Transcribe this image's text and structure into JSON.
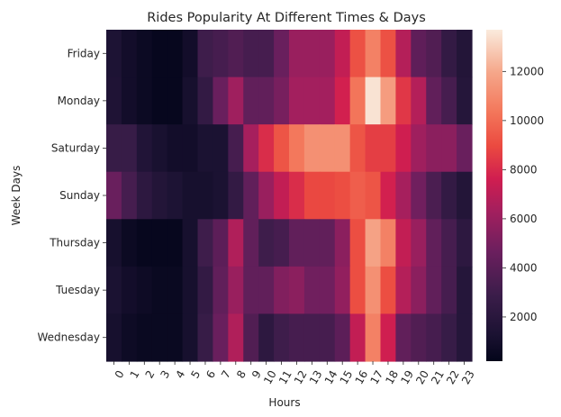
{
  "chart_data": {
    "type": "heatmap",
    "title": "Rides Popularity At Different Times & Days",
    "xlabel": "Hours",
    "ylabel": "Week Days",
    "x": [
      "0",
      "1",
      "2",
      "3",
      "4",
      "5",
      "6",
      "7",
      "8",
      "9",
      "10",
      "11",
      "12",
      "13",
      "14",
      "15",
      "16",
      "17",
      "18",
      "19",
      "20",
      "21",
      "22",
      "23"
    ],
    "y": [
      "Friday",
      "Monday",
      "Saturday",
      "Sunday",
      "Thursday",
      "Tuesday",
      "Wednesday"
    ],
    "values": [
      [
        1400,
        900,
        600,
        400,
        400,
        900,
        3000,
        3300,
        3700,
        3300,
        3300,
        4600,
        6000,
        6000,
        6000,
        7200,
        9200,
        10700,
        9200,
        6800,
        4200,
        3700,
        2500,
        1700
      ],
      [
        1500,
        900,
        600,
        400,
        400,
        1100,
        2500,
        4600,
        6200,
        4300,
        4300,
        5000,
        6300,
        6300,
        6300,
        7700,
        10300,
        13500,
        11600,
        8400,
        6800,
        4300,
        3300,
        1800
      ],
      [
        2700,
        2700,
        1600,
        1200,
        900,
        900,
        1300,
        1300,
        3300,
        6400,
        8100,
        9300,
        10400,
        11200,
        11200,
        11200,
        9300,
        8600,
        8600,
        7600,
        6200,
        5600,
        5600,
        4600
      ],
      [
        4600,
        3300,
        2200,
        1700,
        1400,
        1100,
        1100,
        1300,
        2500,
        4300,
        6000,
        7200,
        8100,
        8900,
        8900,
        9100,
        9600,
        9300,
        7700,
        6400,
        4800,
        3500,
        2500,
        1700
      ],
      [
        1100,
        600,
        400,
        400,
        400,
        1100,
        3000,
        4100,
        6700,
        4300,
        3000,
        3300,
        4300,
        4300,
        4300,
        5600,
        9100,
        11800,
        10700,
        7200,
        6000,
        4300,
        3300,
        2200
      ],
      [
        1300,
        900,
        700,
        500,
        500,
        1100,
        2500,
        4300,
        6000,
        4300,
        4300,
        5300,
        5600,
        4800,
        4800,
        5800,
        9100,
        11200,
        9100,
        6800,
        5600,
        4300,
        3300,
        1800
      ],
      [
        1100,
        700,
        500,
        500,
        500,
        1100,
        2700,
        4600,
        6700,
        3700,
        2200,
        3000,
        3300,
        3300,
        3300,
        4100,
        7200,
        10700,
        7600,
        4300,
        3700,
        3300,
        2700,
        1800
      ]
    ],
    "colorbar": {
      "min": 200,
      "max": 13700,
      "ticks": [
        2000,
        4000,
        6000,
        8000,
        10000,
        12000
      ],
      "colormap": "rocket"
    }
  }
}
